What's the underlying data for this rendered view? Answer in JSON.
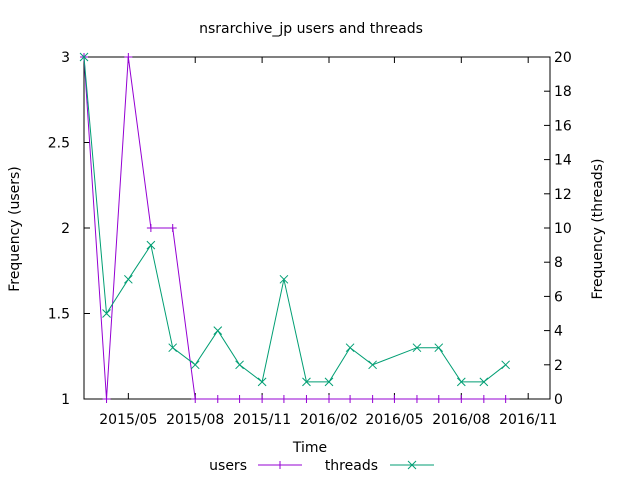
{
  "chart_data": {
    "type": "line",
    "title": "nsrarchive_jp users and threads",
    "xlabel": "Time",
    "ylabel_left": "Frequency (users)",
    "ylabel_right": "Frequency (threads)",
    "x_tick_labels": [
      "2015/05",
      "2015/08",
      "2015/11",
      "2016/02",
      "2016/05",
      "2016/08",
      "2016/11"
    ],
    "x_tick_dates": [
      "2015-05-01",
      "2015-08-01",
      "2015-11-01",
      "2016-02-01",
      "2016-05-01",
      "2016-08-01",
      "2016-11-01"
    ],
    "xlim": [
      "2015-03-01",
      "2016-12-01"
    ],
    "y_left_ticks": [
      "1",
      "1.5",
      "2",
      "2.5",
      "3"
    ],
    "y_left_lim": [
      1,
      3
    ],
    "y_right_ticks": [
      "0",
      "2",
      "4",
      "6",
      "8",
      "10",
      "12",
      "14",
      "16",
      "18",
      "20"
    ],
    "y_right_lim": [
      0,
      20
    ],
    "legend_position": "bottom",
    "series": [
      {
        "name": "users",
        "axis": "left",
        "color": "#9400d3",
        "marker": "plus",
        "x": [
          "2015-03-01",
          "2015-04-01",
          "2015-05-01",
          "2015-06-01",
          "2015-07-01",
          "2015-08-01",
          "2015-09-01",
          "2015-10-01",
          "2015-11-01",
          "2015-12-01",
          "2016-01-01",
          "2016-02-01",
          "2016-03-01",
          "2016-04-01",
          "2016-05-01",
          "2016-06-01",
          "2016-07-01",
          "2016-08-01",
          "2016-09-01",
          "2016-10-01"
        ],
        "y": [
          3,
          1,
          3,
          2,
          2,
          1,
          1,
          1,
          1,
          1,
          1,
          1,
          1,
          1,
          1,
          1,
          1,
          1,
          1,
          1
        ]
      },
      {
        "name": "threads",
        "axis": "right",
        "color": "#009e73",
        "marker": "cross",
        "x": [
          "2015-03-01",
          "2015-04-01",
          "2015-05-01",
          "2015-06-01",
          "2015-07-01",
          "2015-08-01",
          "2015-09-01",
          "2015-10-01",
          "2015-11-01",
          "2015-12-01",
          "2016-01-01",
          "2016-02-01",
          "2016-03-01",
          "2016-04-01",
          "2016-06-01",
          "2016-07-01",
          "2016-08-01",
          "2016-09-01",
          "2016-10-01"
        ],
        "y": [
          20,
          5,
          7,
          9,
          3,
          2,
          4,
          2,
          1,
          7,
          1,
          1,
          3,
          2,
          3,
          3,
          1,
          1,
          2
        ]
      }
    ]
  }
}
